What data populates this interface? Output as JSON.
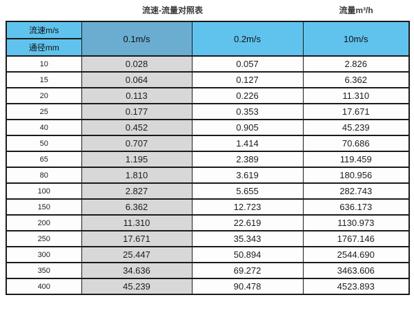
{
  "titles": {
    "left": "流速-流量对照表",
    "right": "流量m³/h"
  },
  "table": {
    "corner_top": "流速m/s",
    "corner_bottom": "通径mm",
    "col_headers": [
      "0.1m/s",
      "0.2m/s",
      "10m/s"
    ],
    "rows": [
      [
        "10",
        "0.028",
        "0.057",
        "2.826"
      ],
      [
        "15",
        "0.064",
        "0.127",
        "6.362"
      ],
      [
        "20",
        "0.113",
        "0.226",
        "11.310"
      ],
      [
        "25",
        "0.177",
        "0.353",
        "17.671"
      ],
      [
        "40",
        "0.452",
        "0.905",
        "45.239"
      ],
      [
        "50",
        "0.707",
        "1.414",
        "70.686"
      ],
      [
        "65",
        "1.195",
        "2.389",
        "119.459"
      ],
      [
        "80",
        "1.810",
        "3.619",
        "180.956"
      ],
      [
        "100",
        "2.827",
        "5.655",
        "282.743"
      ],
      [
        "150",
        "6.362",
        "12.723",
        "636.173"
      ],
      [
        "200",
        "11.310",
        "22.619",
        "1130.973"
      ],
      [
        "250",
        "17.671",
        "35.343",
        "1767.146"
      ],
      [
        "300",
        "25.447",
        "50.894",
        "2544.690"
      ],
      [
        "350",
        "34.636",
        "69.272",
        "3463.606"
      ],
      [
        "400",
        "45.239",
        "90.478",
        "4523.893"
      ]
    ]
  },
  "colors": {
    "header_blue": "#60C3EE",
    "highlight_blue": "#6BADD1",
    "gray_column": "#D8D8D8",
    "border": "#1a1a1a"
  },
  "chart_data": {
    "type": "table",
    "title": "流速-流量对照表",
    "right_label": "流量m³/h",
    "row_axis_label": "通径mm",
    "column_axis_label": "流速m/s",
    "categories": [
      10,
      15,
      20,
      25,
      40,
      50,
      65,
      80,
      100,
      150,
      200,
      250,
      300,
      350,
      400
    ],
    "series": [
      {
        "name": "0.1m/s",
        "values": [
          0.028,
          0.064,
          0.113,
          0.177,
          0.452,
          0.707,
          1.195,
          1.81,
          2.827,
          6.362,
          11.31,
          17.671,
          25.447,
          34.636,
          45.239
        ]
      },
      {
        "name": "0.2m/s",
        "values": [
          0.057,
          0.127,
          0.226,
          0.353,
          0.905,
          1.414,
          2.389,
          3.619,
          5.655,
          12.723,
          22.619,
          35.343,
          50.894,
          69.272,
          90.478
        ]
      },
      {
        "name": "10m/s",
        "values": [
          2.826,
          6.362,
          11.31,
          17.671,
          45.239,
          70.686,
          119.459,
          180.956,
          282.743,
          636.173,
          1130.973,
          1767.146,
          2544.69,
          3463.606,
          4523.893
        ]
      }
    ]
  }
}
